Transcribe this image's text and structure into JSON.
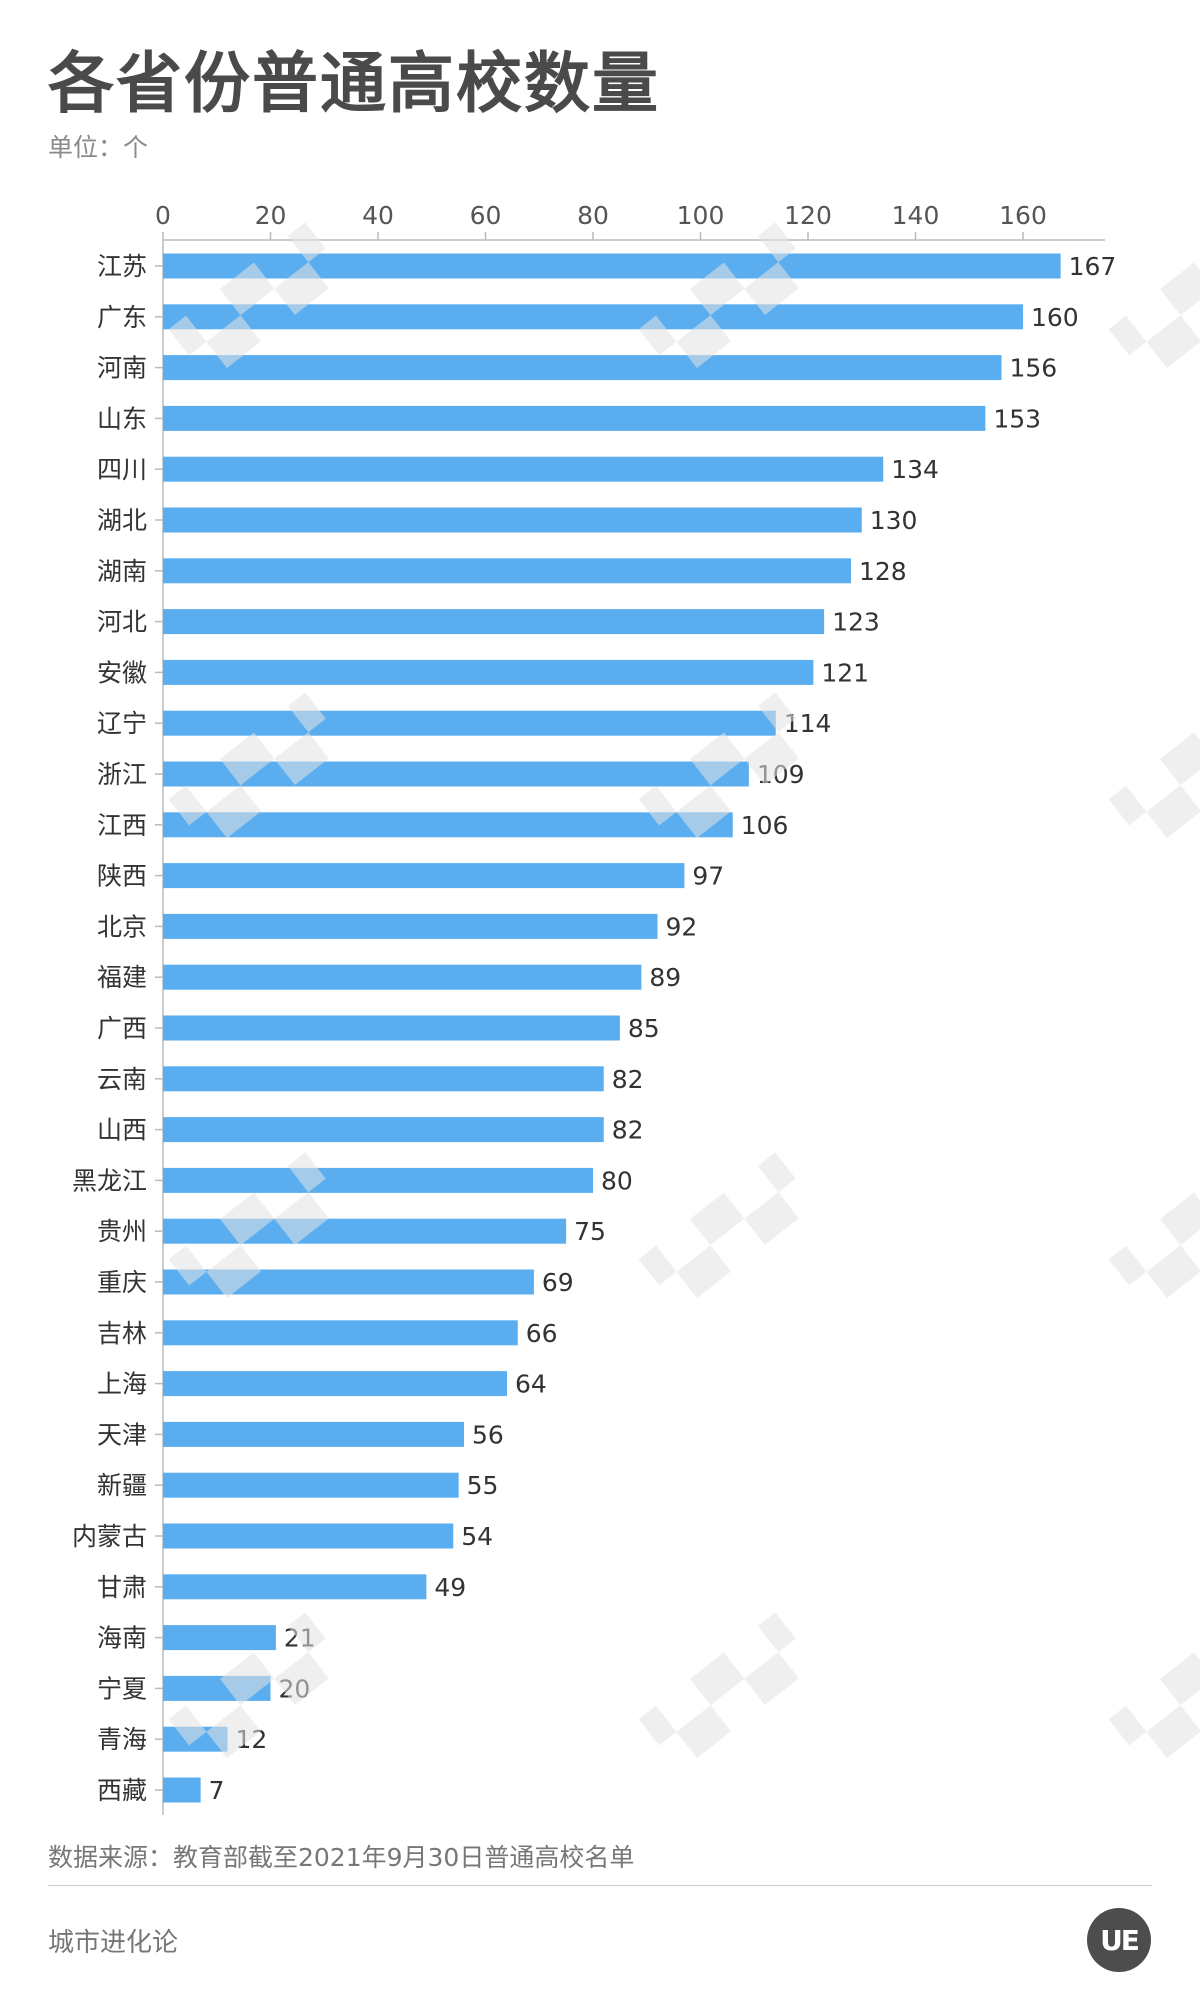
{
  "header": {
    "title": "各省份普通高校数量",
    "unit": "单位：个"
  },
  "footer": {
    "source": "数据来源：教育部截至2021年9月30日普通高校名单",
    "brand": "城市进化论",
    "logo_text": "UE"
  },
  "colors": {
    "bar": "#5aaef0",
    "axis": "#bbbbbb",
    "title": "#4a4a4a"
  },
  "chart_data": {
    "type": "bar",
    "orientation": "horizontal",
    "title": "各省份普通高校数量",
    "ylabel": "单位：个",
    "xlim": [
      0,
      160
    ],
    "x_ticks": [
      0,
      20,
      40,
      60,
      80,
      100,
      120,
      140,
      160
    ],
    "x_axis_position": "top",
    "grid": false,
    "categories": [
      "江苏",
      "广东",
      "河南",
      "山东",
      "四川",
      "湖北",
      "湖南",
      "河北",
      "安徽",
      "辽宁",
      "浙江",
      "江西",
      "陕西",
      "北京",
      "福建",
      "广西",
      "云南",
      "山西",
      "黑龙江",
      "贵州",
      "重庆",
      "吉林",
      "上海",
      "天津",
      "新疆",
      "内蒙古",
      "甘肃",
      "海南",
      "宁夏",
      "青海",
      "西藏"
    ],
    "values": [
      167,
      160,
      156,
      153,
      134,
      130,
      128,
      123,
      121,
      114,
      109,
      106,
      97,
      92,
      89,
      85,
      82,
      82,
      80,
      75,
      69,
      66,
      64,
      56,
      55,
      54,
      49,
      21,
      20,
      12,
      7
    ]
  }
}
